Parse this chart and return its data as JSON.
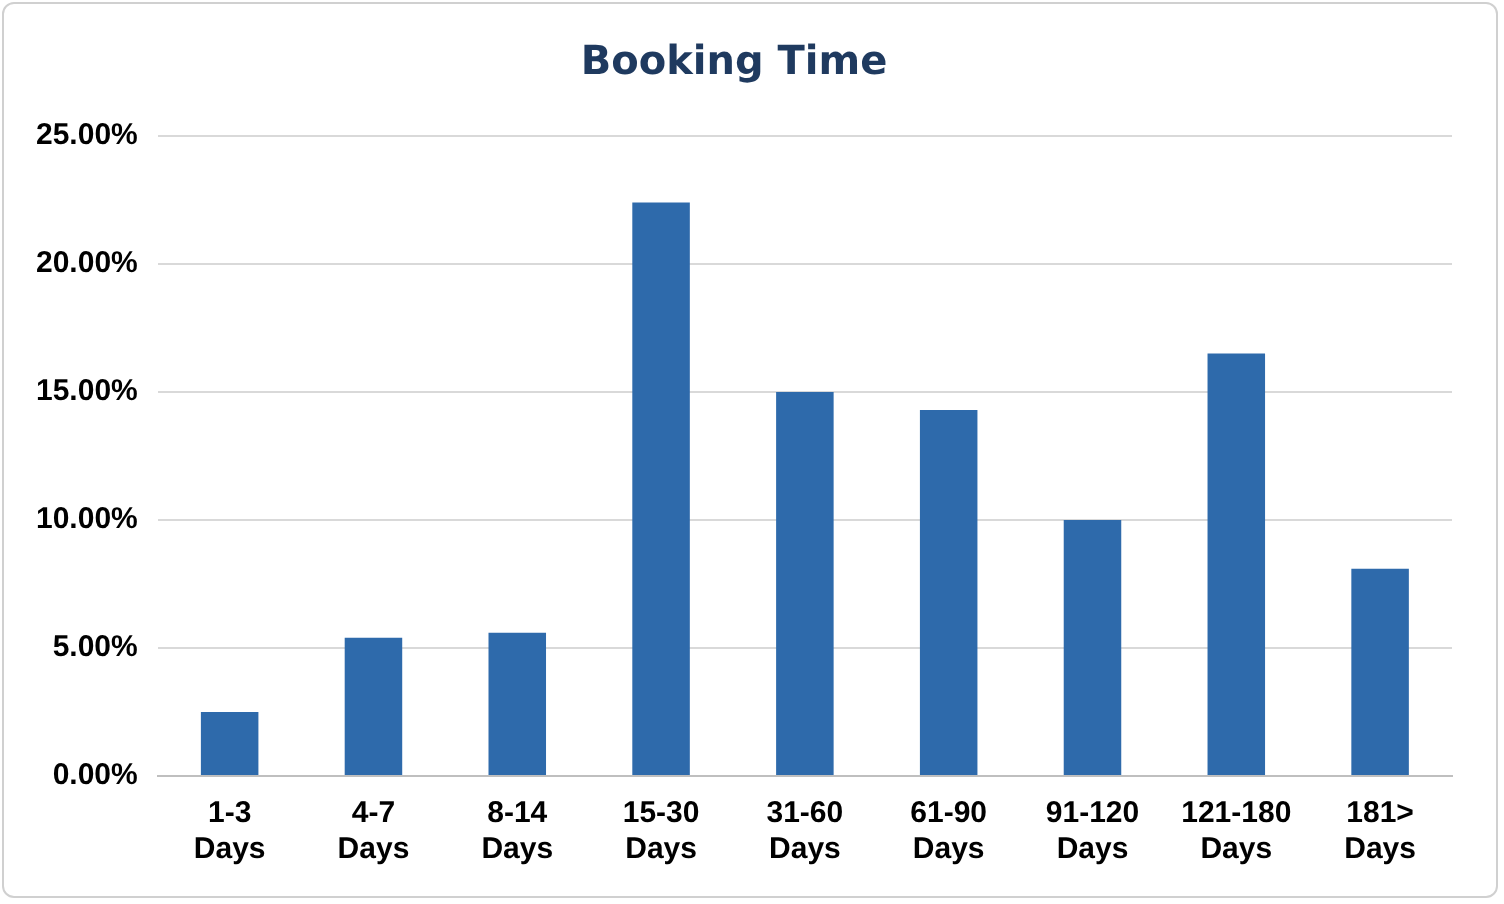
{
  "chart_data": {
    "type": "bar",
    "title": "Booking Time",
    "categories": [
      "1-3 Days",
      "4-7 Days",
      "8-14 Days",
      "15-30 Days",
      "31-60 Days",
      "61-90 Days",
      "91-120 Days",
      "121-180 Days",
      "181> Days"
    ],
    "values": [
      2.5,
      5.4,
      5.6,
      22.4,
      15.0,
      14.3,
      10.0,
      16.5,
      8.1
    ],
    "color": "#2e6aab",
    "ylim": [
      0,
      25
    ],
    "yticks": [
      {
        "value": 0,
        "label": "0.00%"
      },
      {
        "value": 5,
        "label": "5.00%"
      },
      {
        "value": 10,
        "label": "10.00%"
      },
      {
        "value": 15,
        "label": "15.00%"
      },
      {
        "value": 20,
        "label": "20.00%"
      },
      {
        "value": 25,
        "label": "25.00%"
      }
    ],
    "grid": "y",
    "legend": false
  }
}
